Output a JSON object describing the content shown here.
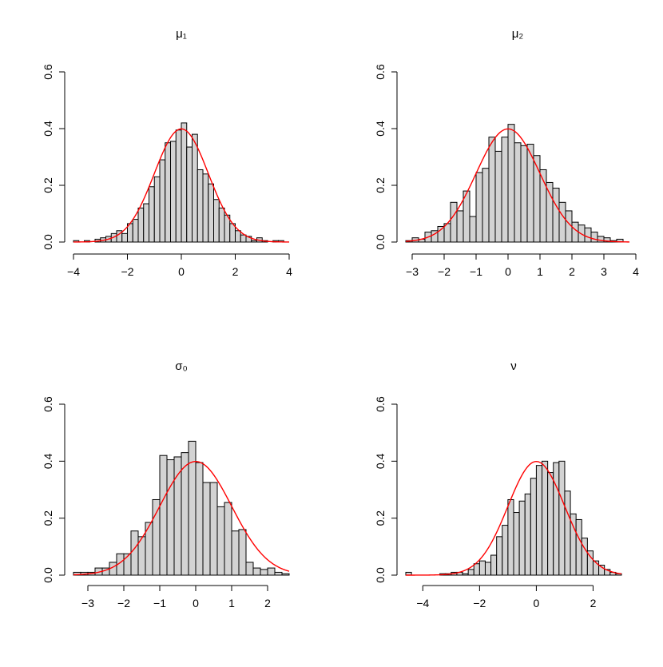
{
  "chart_data": [
    {
      "type": "bar",
      "subtype": "histogram-with-density-curve",
      "title": "μ₁",
      "xlabel": "",
      "ylabel": "",
      "grid": false,
      "bar_color": "#d3d3d3",
      "curve_color": "#ff0000",
      "xlim": [
        -4,
        4
      ],
      "ylim": [
        0,
        0.6
      ],
      "x_ticks": [
        -4,
        -2,
        0,
        2,
        4
      ],
      "x_tick_labels": [
        "−4",
        "−2",
        "0",
        "2",
        "4"
      ],
      "y_ticks": [
        0.0,
        0.2,
        0.4,
        0.6
      ],
      "y_tick_labels": [
        "0.0",
        "0.2",
        "0.4",
        "0.6"
      ],
      "bin_start": -4.0,
      "bin_width": 0.2,
      "values": [
        0.005,
        0.0,
        0.005,
        0.0,
        0.01,
        0.015,
        0.02,
        0.03,
        0.04,
        0.03,
        0.065,
        0.08,
        0.12,
        0.135,
        0.195,
        0.23,
        0.29,
        0.35,
        0.355,
        0.395,
        0.42,
        0.335,
        0.38,
        0.255,
        0.24,
        0.205,
        0.15,
        0.12,
        0.095,
        0.065,
        0.04,
        0.025,
        0.02,
        0.005,
        0.015,
        0.005,
        0.0,
        0.005,
        0.005
      ]
    },
    {
      "type": "bar",
      "subtype": "histogram-with-density-curve",
      "title": "μ₂",
      "xlabel": "",
      "ylabel": "",
      "grid": false,
      "bar_color": "#d3d3d3",
      "curve_color": "#ff0000",
      "xlim": [
        -3.2,
        3.8
      ],
      "ylim": [
        0,
        0.6
      ],
      "x_ticks": [
        -3,
        -2,
        -1,
        0,
        1,
        2,
        3,
        4
      ],
      "x_tick_labels": [
        "−3",
        "−2",
        "−1",
        "0",
        "1",
        "2",
        "3",
        "4"
      ],
      "y_ticks": [
        0.0,
        0.2,
        0.4,
        0.6
      ],
      "y_tick_labels": [
        "0.0",
        "0.2",
        "0.4",
        "0.6"
      ],
      "bin_start": -3.2,
      "bin_width": 0.2,
      "values": [
        0.005,
        0.015,
        0.01,
        0.035,
        0.04,
        0.055,
        0.065,
        0.14,
        0.11,
        0.18,
        0.09,
        0.245,
        0.26,
        0.37,
        0.32,
        0.37,
        0.415,
        0.35,
        0.34,
        0.345,
        0.305,
        0.255,
        0.21,
        0.19,
        0.14,
        0.11,
        0.07,
        0.06,
        0.05,
        0.035,
        0.02,
        0.015,
        0.005,
        0.01,
        0.0
      ]
    },
    {
      "type": "bar",
      "subtype": "histogram-with-density-curve",
      "title": "σ₀",
      "xlabel": "",
      "ylabel": "",
      "grid": false,
      "bar_color": "#d3d3d3",
      "curve_color": "#ff0000",
      "xlim": [
        -3.4,
        2.6
      ],
      "ylim": [
        0,
        0.6
      ],
      "x_ticks": [
        -3,
        -2,
        -1,
        0,
        1,
        2
      ],
      "x_tick_labels": [
        "−3",
        "−2",
        "−1",
        "0",
        "1",
        "2"
      ],
      "y_ticks": [
        0.0,
        0.2,
        0.4,
        0.6
      ],
      "y_tick_labels": [
        "0.0",
        "0.2",
        "0.4",
        "0.6"
      ],
      "bin_start": -3.4,
      "bin_width": 0.2,
      "values": [
        0.01,
        0.01,
        0.01,
        0.025,
        0.025,
        0.045,
        0.075,
        0.075,
        0.155,
        0.135,
        0.185,
        0.265,
        0.42,
        0.405,
        0.415,
        0.43,
        0.47,
        0.395,
        0.325,
        0.325,
        0.24,
        0.255,
        0.155,
        0.16,
        0.045,
        0.025,
        0.02,
        0.025,
        0.01,
        0.005
      ]
    },
    {
      "type": "bar",
      "subtype": "histogram-with-density-curve",
      "title": "ν",
      "xlabel": "",
      "ylabel": "",
      "grid": false,
      "bar_color": "#d3d3d3",
      "curve_color": "#ff0000",
      "xlim": [
        -4.6,
        3.0
      ],
      "ylim": [
        0,
        0.6
      ],
      "x_ticks": [
        -4,
        -2,
        0,
        2
      ],
      "x_tick_labels": [
        "−4",
        "−2",
        "0",
        "2"
      ],
      "y_ticks": [
        0.0,
        0.2,
        0.4,
        0.6
      ],
      "y_tick_labels": [
        "0.0",
        "0.2",
        "0.4",
        "0.6"
      ],
      "bin_start": -4.6,
      "bin_width": 0.2,
      "values": [
        0.01,
        0.0,
        0.0,
        0.0,
        0.0,
        0.0,
        0.005,
        0.005,
        0.01,
        0.01,
        0.005,
        0.02,
        0.04,
        0.05,
        0.045,
        0.07,
        0.135,
        0.175,
        0.265,
        0.22,
        0.26,
        0.285,
        0.34,
        0.385,
        0.4,
        0.36,
        0.395,
        0.4,
        0.295,
        0.215,
        0.195,
        0.13,
        0.085,
        0.05,
        0.035,
        0.02,
        0.01,
        0.005
      ]
    }
  ]
}
